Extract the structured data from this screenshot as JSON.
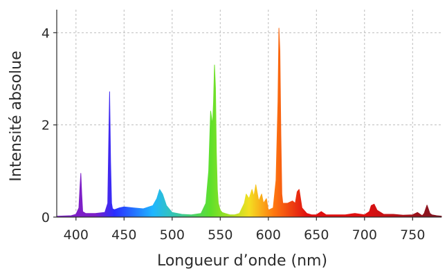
{
  "chart_data": {
    "type": "area",
    "title": "",
    "xlabel": "Longueur d’onde (nm)",
    "ylabel": "Intensité absolue",
    "xlim": [
      380,
      780
    ],
    "ylim": [
      0,
      4.5
    ],
    "x_ticks": [
      400,
      450,
      500,
      550,
      600,
      650,
      700,
      750
    ],
    "y_ticks": [
      0,
      2,
      4
    ],
    "grid": true,
    "legend": "none",
    "fill": "visible spectrum gradient",
    "colors": {
      "violet": "#7d1fc7",
      "blue": "#2a2dff",
      "cyan": "#1fb6ff",
      "green": "#5fe02a",
      "yellow": "#f3df22",
      "orange": "#ff7a10",
      "red": "#e01010",
      "dark_red": "#7a1522"
    },
    "series": [
      {
        "x": [
          380,
          395,
          400,
          403,
          404,
          405,
          406,
          407,
          410,
          420,
          430,
          433,
          434,
          435,
          436,
          437,
          438,
          440,
          445,
          450,
          460,
          470,
          480,
          484,
          487,
          490,
          494,
          500,
          510,
          520,
          530,
          535,
          538,
          540,
          542,
          543,
          544,
          545,
          546,
          547,
          548,
          550,
          552,
          555,
          560,
          565,
          570,
          575,
          577,
          580,
          583,
          585,
          587,
          590,
          593,
          595,
          598,
          600,
          605,
          608,
          610,
          611,
          612,
          613,
          614,
          615,
          618,
          620,
          625,
          628,
          630,
          632,
          635,
          640,
          645,
          650,
          655,
          660,
          670,
          680,
          690,
          700,
          705,
          707,
          710,
          713,
          720,
          730,
          740,
          750,
          755,
          760,
          762,
          765,
          768,
          770,
          775,
          780
        ],
        "y": [
          0.02,
          0.03,
          0.06,
          0.2,
          0.6,
          0.95,
          0.5,
          0.12,
          0.08,
          0.08,
          0.1,
          0.3,
          1.6,
          2.72,
          1.2,
          0.3,
          0.18,
          0.16,
          0.2,
          0.22,
          0.2,
          0.18,
          0.25,
          0.4,
          0.6,
          0.5,
          0.25,
          0.1,
          0.06,
          0.05,
          0.08,
          0.3,
          1.0,
          2.3,
          2.0,
          2.5,
          3.3,
          2.8,
          1.4,
          0.6,
          0.3,
          0.15,
          0.1,
          0.08,
          0.05,
          0.05,
          0.08,
          0.3,
          0.5,
          0.4,
          0.6,
          0.45,
          0.7,
          0.35,
          0.5,
          0.3,
          0.4,
          0.15,
          0.2,
          0.8,
          2.5,
          4.1,
          3.6,
          1.8,
          0.5,
          0.3,
          0.3,
          0.3,
          0.35,
          0.3,
          0.55,
          0.6,
          0.2,
          0.08,
          0.05,
          0.05,
          0.12,
          0.05,
          0.05,
          0.05,
          0.08,
          0.05,
          0.12,
          0.25,
          0.28,
          0.15,
          0.06,
          0.06,
          0.04,
          0.05,
          0.1,
          0.03,
          0.08,
          0.26,
          0.08,
          0.05,
          0.03,
          0.02
        ]
      }
    ]
  }
}
